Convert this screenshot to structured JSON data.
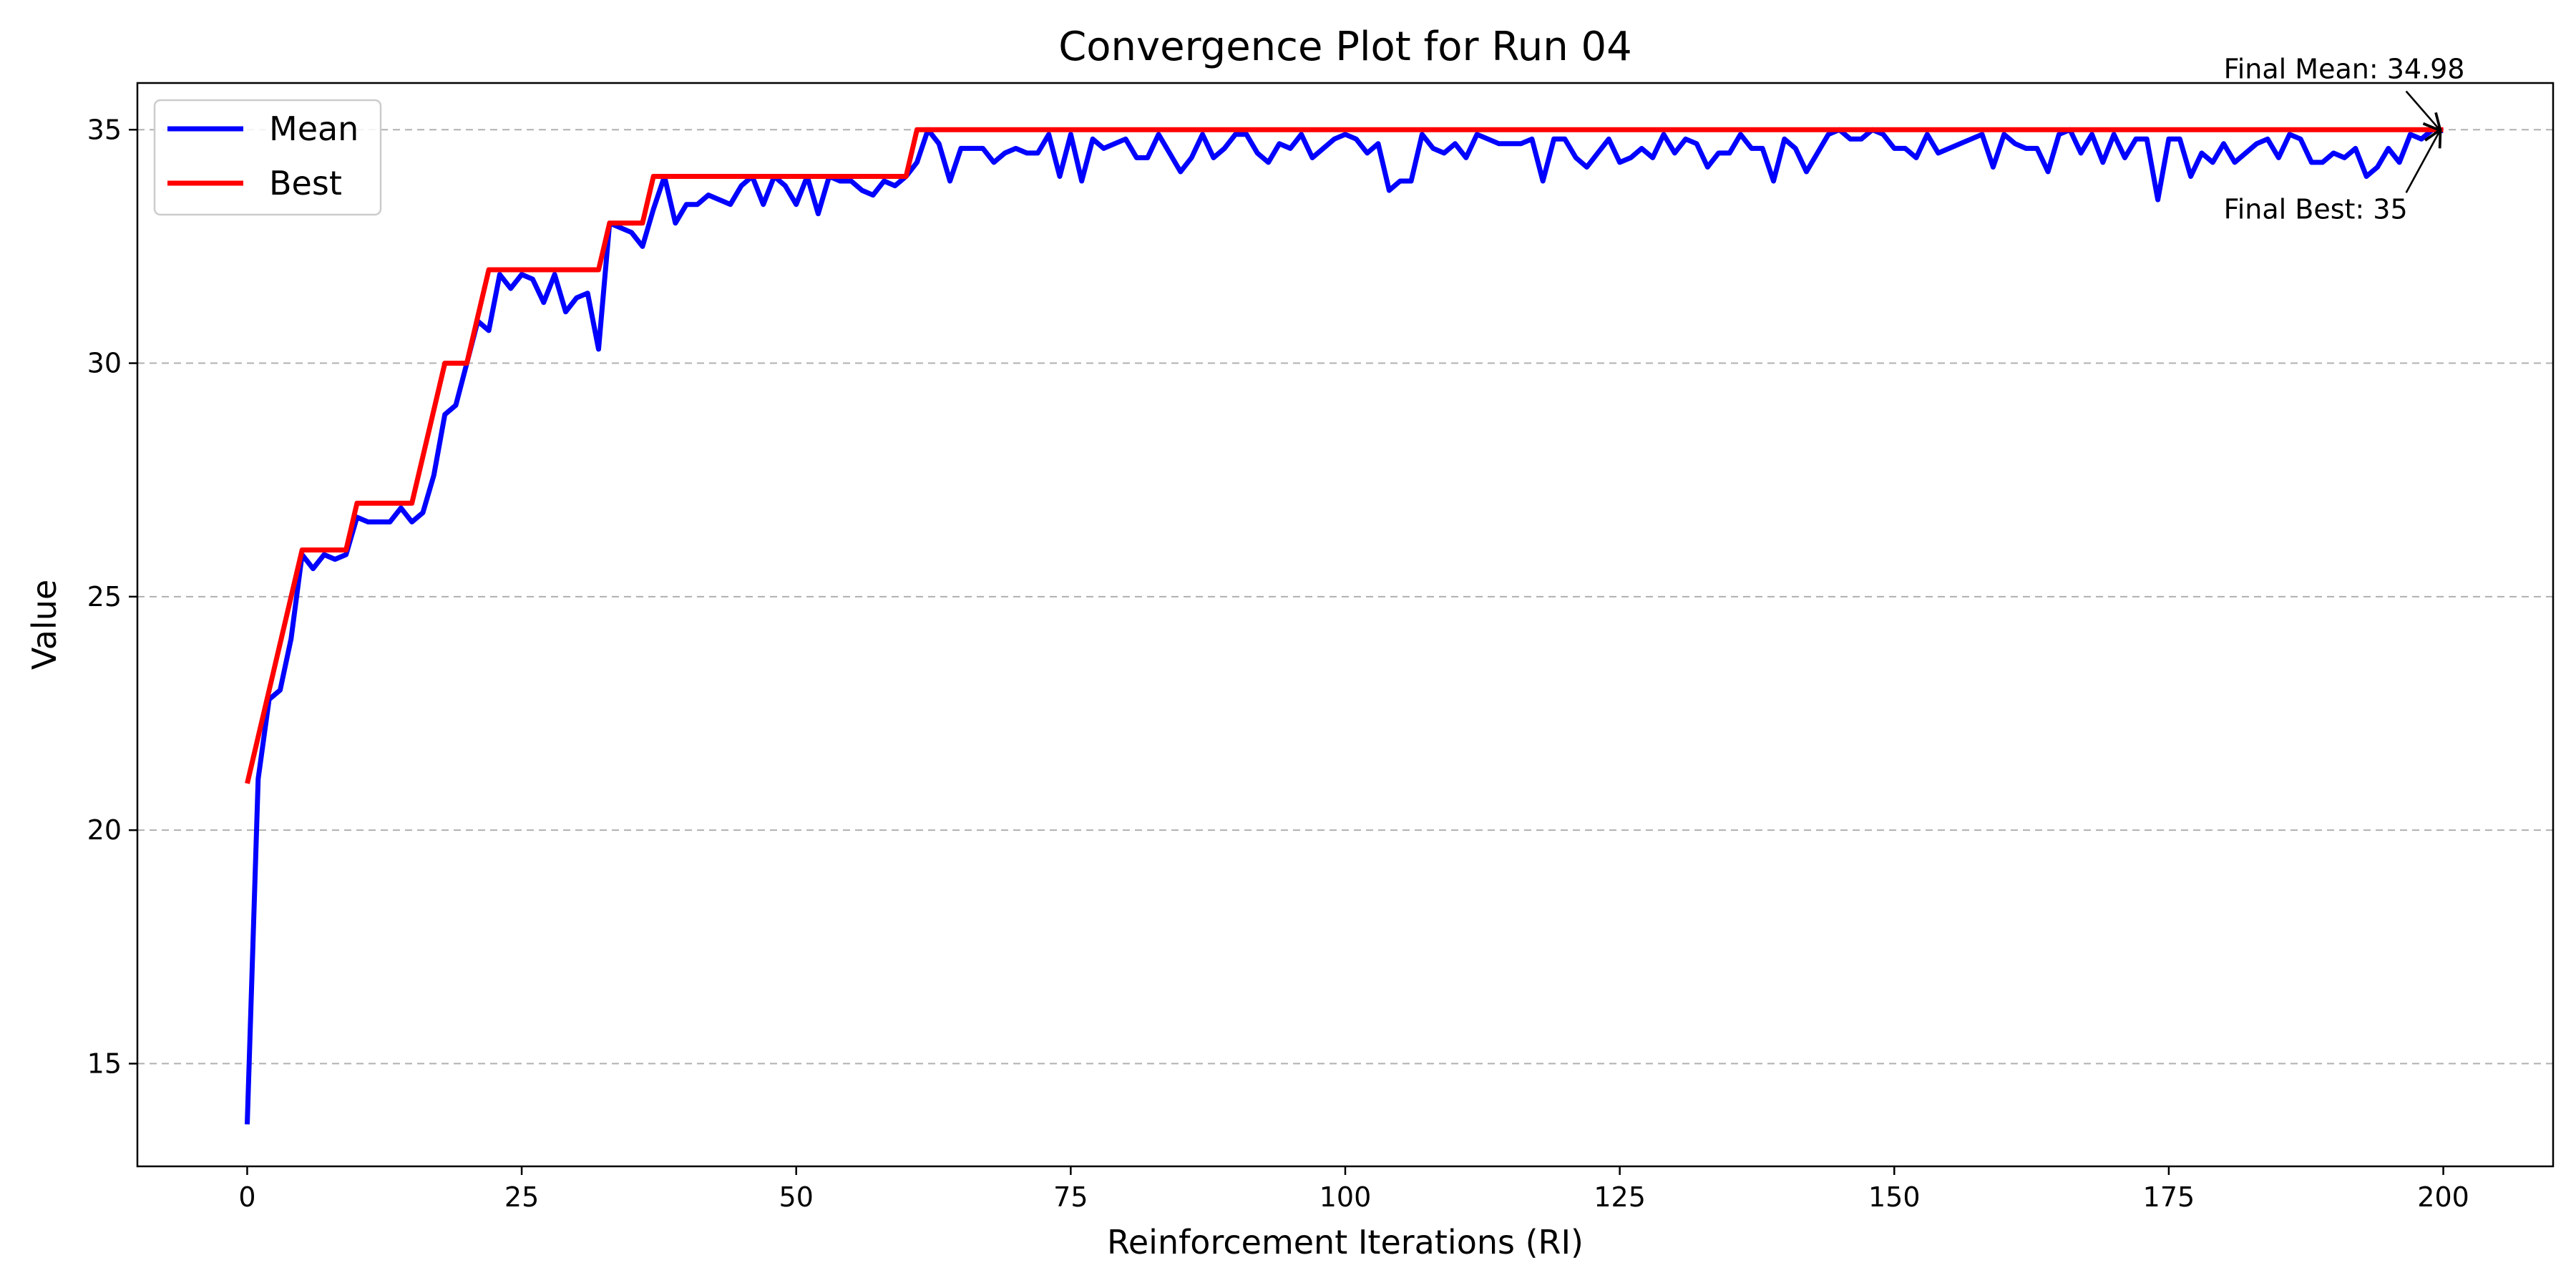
{
  "chart_data": {
    "type": "line",
    "title": "Convergence Plot for Run 04",
    "xlabel": "Reinforcement Iterations (RI)",
    "ylabel": "Value",
    "xlim": [
      -10,
      210
    ],
    "ylim": [
      12.8,
      36
    ],
    "xticks": [
      0,
      25,
      50,
      75,
      100,
      125,
      150,
      175,
      200
    ],
    "yticks": [
      15,
      20,
      25,
      30,
      35
    ],
    "grid": "y-dashed",
    "legend_position": "top-left",
    "series": [
      {
        "name": "Mean",
        "color": "#0000ff",
        "x_start": 0,
        "x_step": 1,
        "values": [
          13.7,
          21.1,
          22.8,
          23,
          24.1,
          25.9,
          25.6,
          25.9,
          25.8,
          25.9,
          26.7,
          26.6,
          26.6,
          26.6,
          26.9,
          26.6,
          26.8,
          27.6,
          28.9,
          29.1,
          30,
          30.9,
          30.7,
          31.9,
          31.6,
          31.9,
          31.8,
          31.3,
          31.9,
          31.1,
          31.4,
          31.5,
          30.3,
          33,
          32.9,
          32.8,
          32.5,
          33.3,
          34,
          33,
          33.4,
          33.4,
          33.6,
          33.5,
          33.4,
          33.8,
          34,
          33.4,
          34,
          33.8,
          33.4,
          34,
          33.2,
          34,
          33.9,
          33.9,
          33.7,
          33.6,
          33.9,
          33.8,
          34,
          34.3,
          35,
          34.7,
          33.9,
          34.6,
          34.6,
          34.6,
          34.3,
          34.5,
          34.6,
          34.5,
          34.5,
          34.9,
          34,
          34.9,
          33.9,
          34.8,
          34.6,
          34.7,
          34.8,
          34.4,
          34.4,
          34.9,
          34.5,
          34.1,
          34.4,
          34.9,
          34.4,
          34.6,
          34.9,
          34.9,
          34.5,
          34.3,
          34.7,
          34.6,
          34.9,
          34.4,
          34.6,
          34.8,
          34.9,
          34.8,
          34.5,
          34.7,
          33.7,
          33.9,
          33.9,
          34.9,
          34.6,
          34.5,
          34.7,
          34.4,
          34.9,
          34.8,
          34.7,
          34.7,
          34.7,
          34.8,
          33.9,
          34.8,
          34.8,
          34.4,
          34.2,
          34.5,
          34.8,
          34.3,
          34.4,
          34.6,
          34.4,
          34.9,
          34.5,
          34.8,
          34.7,
          34.2,
          34.5,
          34.5,
          34.9,
          34.6,
          34.6,
          33.9,
          34.8,
          34.6,
          34.1,
          34.5,
          34.9,
          35,
          34.8,
          34.8,
          35,
          34.9,
          34.6,
          34.6,
          34.4,
          34.9,
          34.5,
          34.6,
          34.7,
          34.8,
          34.9,
          34.2,
          34.9,
          34.7,
          34.6,
          34.6,
          34.1,
          34.9,
          35,
          34.5,
          34.9,
          34.3,
          34.9,
          34.4,
          34.8,
          34.8,
          33.5,
          34.8,
          34.8,
          34,
          34.5,
          34.3,
          34.7,
          34.3,
          34.5,
          34.7,
          34.8,
          34.4,
          34.9,
          34.8,
          34.3,
          34.3,
          34.5,
          34.4,
          34.6,
          34,
          34.2,
          34.6,
          34.3,
          34.9,
          34.8,
          35,
          34.98
        ]
      },
      {
        "name": "Best",
        "color": "#ff0000",
        "x": [
          0,
          5,
          9,
          10,
          15,
          18,
          20,
          22,
          32,
          33,
          36,
          37,
          60,
          61,
          200
        ],
        "y": [
          21,
          26,
          26,
          27,
          27,
          30,
          30,
          32,
          32,
          33,
          33,
          34,
          34,
          35,
          35
        ]
      }
    ],
    "annotations": [
      {
        "text": "Final Mean: 34.98",
        "point_x": 200,
        "point_y": 34.98,
        "text_x": 180,
        "text_y": 36.1,
        "align": "start"
      },
      {
        "text": "Final Best: 35",
        "point_x": 200,
        "point_y": 35,
        "text_x": 180,
        "text_y": 33.1,
        "align": "start"
      }
    ]
  }
}
